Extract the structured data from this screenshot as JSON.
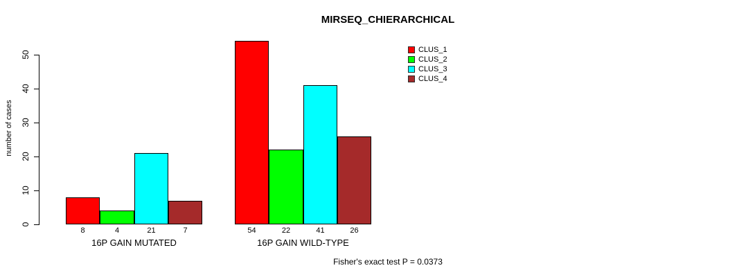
{
  "chart_data": {
    "type": "bar",
    "title": "MIRSEQ_CHIERARCHICAL",
    "ylabel": "number of cases",
    "xlabel": "",
    "ylim": [
      0,
      54
    ],
    "yticks": [
      0,
      10,
      20,
      30,
      40,
      50
    ],
    "grid": false,
    "legend_position": "top-right",
    "bar_value_labels_shown": true,
    "categories": [
      "16P GAIN MUTATED",
      "16P GAIN WILD-TYPE"
    ],
    "series": [
      {
        "name": "CLUS_1",
        "color": "#FF0000",
        "values": [
          8,
          54
        ]
      },
      {
        "name": "CLUS_2",
        "color": "#00FF00",
        "values": [
          4,
          22
        ]
      },
      {
        "name": "CLUS_3",
        "color": "#00FFFF",
        "values": [
          21,
          41
        ]
      },
      {
        "name": "CLUS_4",
        "color": "#A52A2A",
        "values": [
          7,
          26
        ]
      }
    ],
    "annotation": "Fisher's exact test P = 0.0373"
  }
}
